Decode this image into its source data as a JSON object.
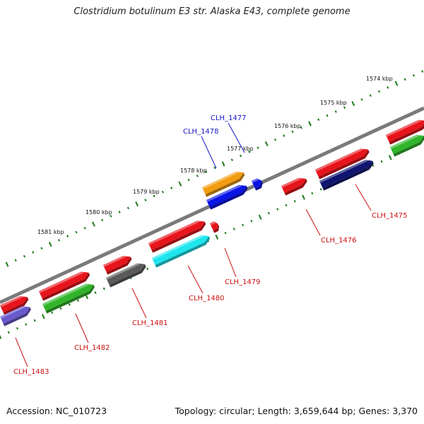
{
  "title": "Clostridium botulinum E3 str. Alaska E43, complete genome",
  "accession": "Accession: NC_010723",
  "summary": "Topology: circular; Length: 3,659,644 bp; Genes: 3,370",
  "colors": {
    "red": "#e8141b",
    "orange": "#f39c12",
    "blue": "#0a14e6",
    "green": "#31b52b",
    "navy": "#0f1570",
    "gray": "#5a5a5a",
    "cyan": "#1ee6ee",
    "purple": "#6a5acd",
    "backbone": "#7a7a7a",
    "tick": "#1a7a1a",
    "label_red": "#cc1010",
    "label_blue": "#1515c8"
  },
  "kbp_labels": [
    "1574 kbp",
    "1575 kbp",
    "1576 kbp",
    "1577 kbp",
    "1578 kbp",
    "1579 kbp",
    "1580 kbp",
    "1581 kbp"
  ],
  "gene_labels": [
    "CLH_1477",
    "CLH_1478",
    "CLH_1475",
    "CLH_1476",
    "CLH_1479",
    "CLH_1480",
    "CLH_1481",
    "CLH_1482",
    "CLH_1483"
  ]
}
